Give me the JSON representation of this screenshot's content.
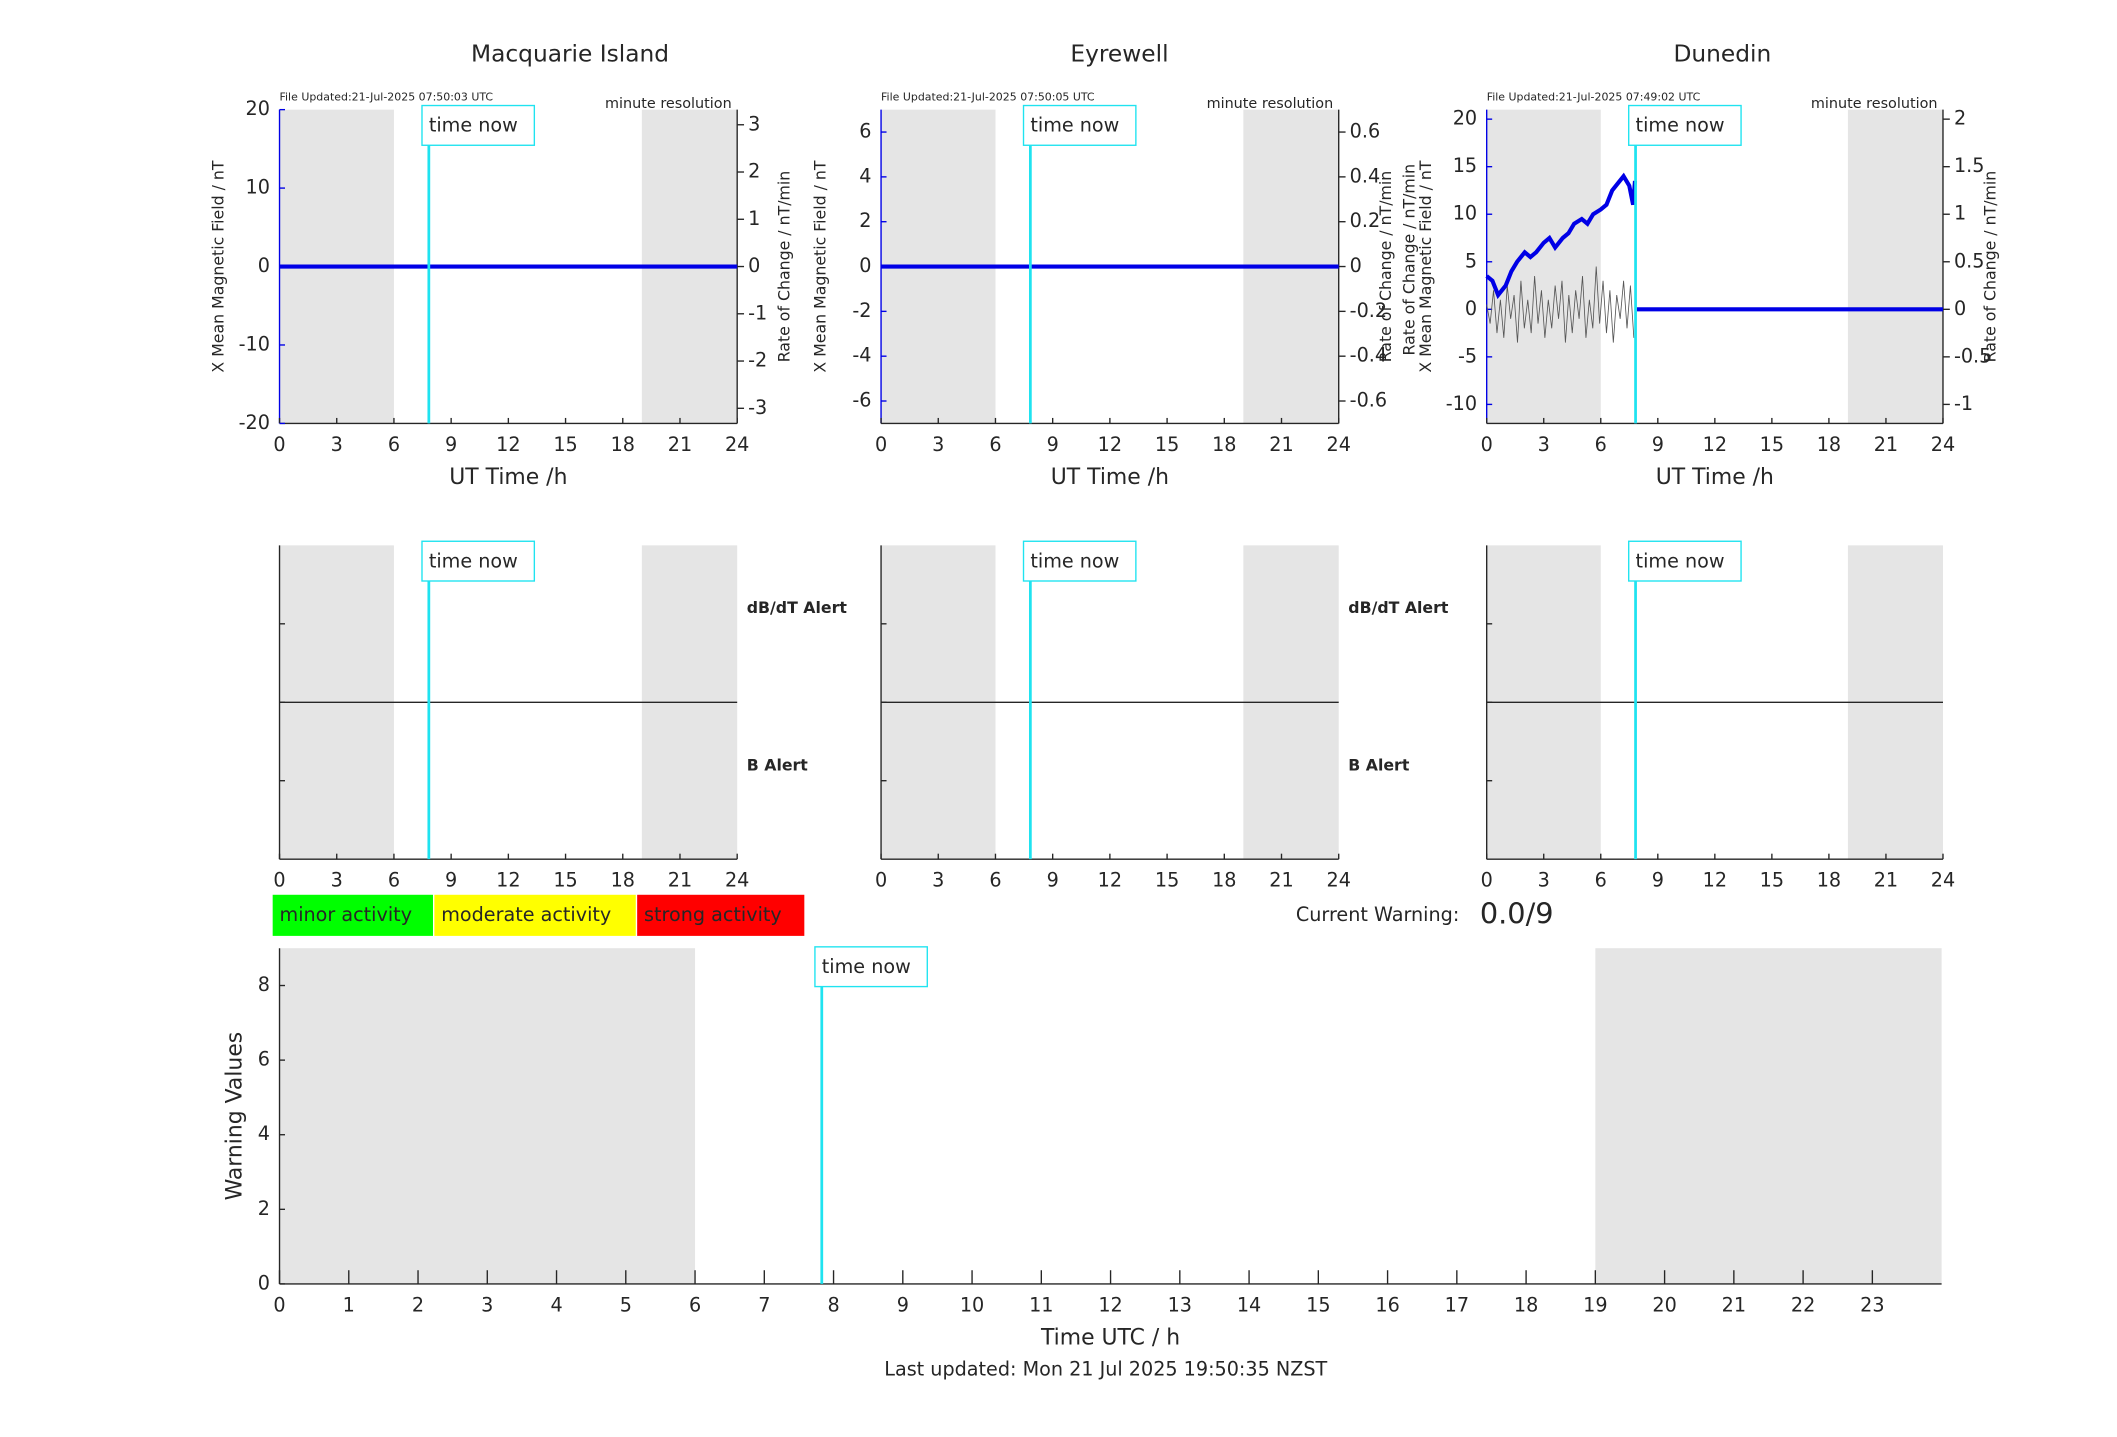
{
  "chart_data": [
    {
      "type": "line",
      "title": "Macquarie Island",
      "file_updated": "File Updated:21-Jul-2025 07:50:03 UTC",
      "resolution": "minute resolution",
      "xlabel": "UT Time /h",
      "ylabel": "X Mean Magnetic Field / nT",
      "y2label": "Rate of Change / nT/min",
      "xlim": [
        0,
        24
      ],
      "xticks": [
        0,
        3,
        6,
        9,
        12,
        15,
        18,
        21,
        24
      ],
      "ylim": [
        -20,
        20
      ],
      "yticks": [
        -20,
        -10,
        0,
        10,
        20
      ],
      "y2lim": [
        -3.32,
        3.32
      ],
      "y2ticks": [
        -3,
        -2,
        -1,
        0,
        1,
        2,
        3
      ],
      "shading": [
        [
          0,
          6
        ],
        [
          19,
          24
        ]
      ],
      "time_now": {
        "x": 7.83,
        "label": "time now"
      },
      "series": [
        {
          "color": "#0000e6",
          "x": [
            0,
            24
          ],
          "values": [
            0,
            0
          ]
        }
      ]
    },
    {
      "type": "line",
      "title": "Eyrewell",
      "file_updated": "File Updated:21-Jul-2025 07:50:05 UTC",
      "resolution": "minute resolution",
      "xlabel": "UT Time /h",
      "ylabel": "X Mean Magnetic Field / nT",
      "y2label": "Rate of Change / nT/min",
      "xlim": [
        0,
        24
      ],
      "xticks": [
        0,
        3,
        6,
        9,
        12,
        15,
        18,
        21,
        24
      ],
      "ylim": [
        -7,
        7
      ],
      "yticks": [
        -6,
        -4,
        -2,
        0,
        2,
        4,
        6
      ],
      "y2lim": [
        -0.7,
        0.7
      ],
      "y2ticks": [
        -0.6,
        -0.4,
        -0.2,
        0,
        0.2,
        0.4,
        0.6
      ],
      "shading": [
        [
          0,
          6
        ],
        [
          19,
          24
        ]
      ],
      "time_now": {
        "x": 7.83,
        "label": "time now"
      },
      "series": [
        {
          "color": "#0000e6",
          "x": [
            0,
            24
          ],
          "values": [
            0,
            0
          ]
        }
      ]
    },
    {
      "type": "line",
      "title": "Dunedin",
      "file_updated": "File Updated:21-Jul-2025 07:49:02 UTC",
      "resolution": "minute resolution",
      "xlabel": "UT Time /h",
      "ylabel": "X Mean Magnetic Field / nT",
      "y2label": "Rate of Change / nT/min",
      "overlay_label": "Rate of Change / nT/min",
      "xlim": [
        0,
        24
      ],
      "xticks": [
        0,
        3,
        6,
        9,
        12,
        15,
        18,
        21,
        24
      ],
      "ylim": [
        -12,
        21
      ],
      "yticks": [
        -10,
        -5,
        0,
        5,
        10,
        15,
        20
      ],
      "y2lim": [
        -1.2,
        2.1
      ],
      "y2ticks": [
        -1,
        -0.5,
        0,
        0.5,
        1,
        1.5,
        2
      ],
      "shading": [
        [
          0,
          6
        ],
        [
          19,
          24
        ]
      ],
      "time_now": {
        "x": 7.83,
        "label": "time now"
      },
      "series": [
        {
          "color": "#555555",
          "axis": "y2",
          "x": [
            0,
            0.18,
            0.36,
            0.54,
            0.72,
            0.9,
            1.08,
            1.26,
            1.44,
            1.62,
            1.8,
            1.98,
            2.16,
            2.34,
            2.52,
            2.7,
            2.88,
            3.06,
            3.24,
            3.42,
            3.6,
            3.78,
            3.96,
            4.14,
            4.32,
            4.5,
            4.68,
            4.86,
            5.04,
            5.22,
            5.4,
            5.58,
            5.76,
            5.94,
            6.12,
            6.3,
            6.48,
            6.66,
            6.84,
            7.02,
            7.2,
            7.38,
            7.56,
            7.74
          ],
          "values": [
            0.05,
            -0.15,
            0.2,
            -0.25,
            0.1,
            -0.3,
            0.25,
            -0.1,
            0.15,
            -0.35,
            0.3,
            -0.2,
            0.1,
            -0.25,
            0.35,
            -0.15,
            0.2,
            -0.3,
            0.1,
            -0.2,
            0.25,
            -0.1,
            0.3,
            -0.35,
            0.15,
            -0.25,
            0.2,
            -0.1,
            0.35,
            -0.3,
            0.1,
            -0.2,
            0.45,
            -0.15,
            0.3,
            -0.25,
            0.2,
            -0.35,
            0.15,
            -0.1,
            0.3,
            -0.2,
            0.25,
            -0.3
          ]
        },
        {
          "color": "#0000e6",
          "x": [
            0,
            0.3,
            0.6,
            1,
            1.3,
            1.6,
            2,
            2.3,
            2.6,
            3,
            3.3,
            3.6,
            4,
            4.3,
            4.6,
            5,
            5.3,
            5.6,
            6,
            6.3,
            6.6,
            7,
            7.2,
            7.5,
            7.7,
            7.8,
            7.85,
            7.9,
            24
          ],
          "values": [
            3.5,
            3,
            1.5,
            2.5,
            4,
            5,
            6,
            5.5,
            6,
            7,
            7.5,
            6.5,
            7.5,
            8,
            9,
            9.5,
            9,
            10,
            10.5,
            11,
            12.5,
            13.5,
            14,
            13,
            11,
            13.5,
            null,
            0,
            0
          ]
        }
      ]
    },
    {
      "type": "alert",
      "xlim": [
        0,
        24
      ],
      "xticks": [
        0,
        3,
        6,
        9,
        12,
        15,
        18,
        21,
        24
      ],
      "shading": [
        [
          0,
          6
        ],
        [
          19,
          24
        ]
      ],
      "time_now": {
        "x": 7.83,
        "label": "time now"
      },
      "upper_label": "dB/dT Alert",
      "lower_label": "B Alert",
      "lower_label_color": "#0000e6"
    },
    {
      "type": "alert",
      "xlim": [
        0,
        24
      ],
      "xticks": [
        0,
        3,
        6,
        9,
        12,
        15,
        18,
        21,
        24
      ],
      "shading": [
        [
          0,
          6
        ],
        [
          19,
          24
        ]
      ],
      "time_now": {
        "x": 7.83,
        "label": "time now"
      },
      "upper_label": "dB/dT Alert",
      "lower_label": "B Alert",
      "lower_label_color": "#0000e6"
    },
    {
      "type": "alert",
      "xlim": [
        0,
        24
      ],
      "xticks": [
        0,
        3,
        6,
        9,
        12,
        15,
        18,
        21,
        24
      ],
      "shading": [
        [
          0,
          6
        ],
        [
          19,
          24
        ]
      ],
      "time_now": {
        "x": 7.83,
        "label": "time now"
      }
    },
    {
      "type": "bar",
      "xlabel": "Time UTC / h",
      "ylabel": "Warning Values",
      "xlim": [
        0,
        24
      ],
      "xticks": [
        0,
        1,
        2,
        3,
        4,
        5,
        6,
        7,
        8,
        9,
        10,
        11,
        12,
        13,
        14,
        15,
        16,
        17,
        18,
        19,
        20,
        21,
        22,
        23
      ],
      "ylim": [
        0,
        9
      ],
      "yticks": [
        0,
        2,
        4,
        6,
        8
      ],
      "shading": [
        [
          0,
          6
        ],
        [
          19,
          24
        ]
      ],
      "time_now": {
        "x": 7.83,
        "label": "time now"
      }
    }
  ],
  "activity_legend": [
    {
      "label": "minor activity",
      "color": "#00ff00"
    },
    {
      "label": "moderate activity",
      "color": "#ffff00"
    },
    {
      "label": "strong activity",
      "color": "#ff0000"
    }
  ],
  "current_warning": {
    "label": "Current Warning:",
    "value": "0.0/9"
  },
  "last_updated": "Last updated: Mon 21 Jul 2025 19:50:35 NZST"
}
